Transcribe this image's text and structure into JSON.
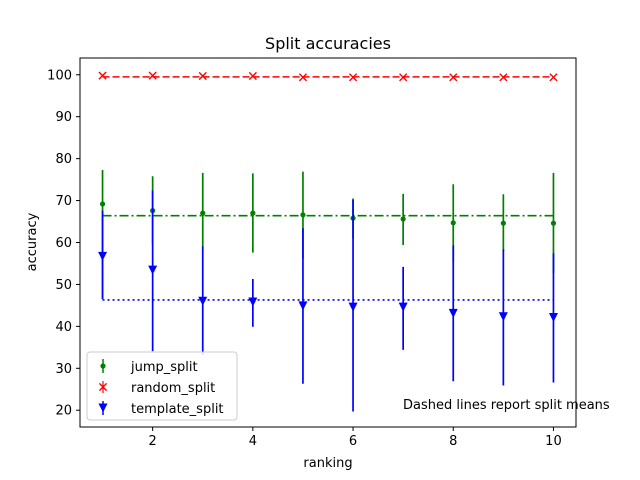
{
  "chart_data": {
    "type": "scatter",
    "title": "Split accuracies",
    "xlabel": "ranking",
    "ylabel": "accuracy",
    "xlim": [
      0.55,
      10.45
    ],
    "ylim": [
      16,
      104
    ],
    "xticks": [
      2,
      4,
      6,
      8,
      10
    ],
    "yticks": [
      20,
      30,
      40,
      50,
      60,
      70,
      80,
      90,
      100
    ],
    "grid": false,
    "legend_position": "lower-left",
    "annotation": "Dashed lines report split means",
    "series": [
      {
        "name": "jump_split",
        "color": "#008000",
        "marker": "dot",
        "x": [
          1,
          2,
          3,
          4,
          5,
          6,
          7,
          8,
          9,
          10
        ],
        "y": [
          69.2,
          67.6,
          67.0,
          67.0,
          66.6,
          65.8,
          65.6,
          64.7,
          64.6,
          64.6
        ],
        "err_low": [
          46.5,
          59.5,
          59.0,
          57.6,
          56.2,
          60.9,
          59.4,
          55.3,
          57.9,
          52.7
        ],
        "err_high": [
          77.3,
          75.8,
          76.6,
          76.5,
          76.9,
          70.5,
          71.6,
          73.9,
          71.5,
          76.6
        ],
        "mean": 66.4,
        "mean_style": "dashdot"
      },
      {
        "name": "random_split",
        "color": "#ff0000",
        "marker": "x",
        "x": [
          1,
          2,
          3,
          4,
          5,
          6,
          7,
          8,
          9,
          10
        ],
        "y": [
          99.8,
          99.8,
          99.7,
          99.7,
          99.4,
          99.4,
          99.4,
          99.4,
          99.4,
          99.4
        ],
        "mean": 99.5,
        "mean_style": "dashed"
      },
      {
        "name": "template_split",
        "color": "#0000ff",
        "marker": "triangle-down",
        "x": [
          1,
          2,
          3,
          4,
          5,
          6,
          7,
          8,
          9,
          10
        ],
        "y": [
          56.7,
          53.4,
          46.0,
          45.8,
          44.9,
          44.6,
          44.6,
          43.1,
          42.3,
          42.1
        ],
        "err_low": [
          46.5,
          34.1,
          33.2,
          39.9,
          26.3,
          19.7,
          34.4,
          26.9,
          25.9,
          26.6
        ],
        "err_high": [
          67.6,
          72.4,
          59.1,
          51.3,
          63.4,
          70.2,
          54.2,
          59.3,
          58.4,
          57.4
        ],
        "mean": 46.3,
        "mean_style": "dotted"
      }
    ]
  }
}
